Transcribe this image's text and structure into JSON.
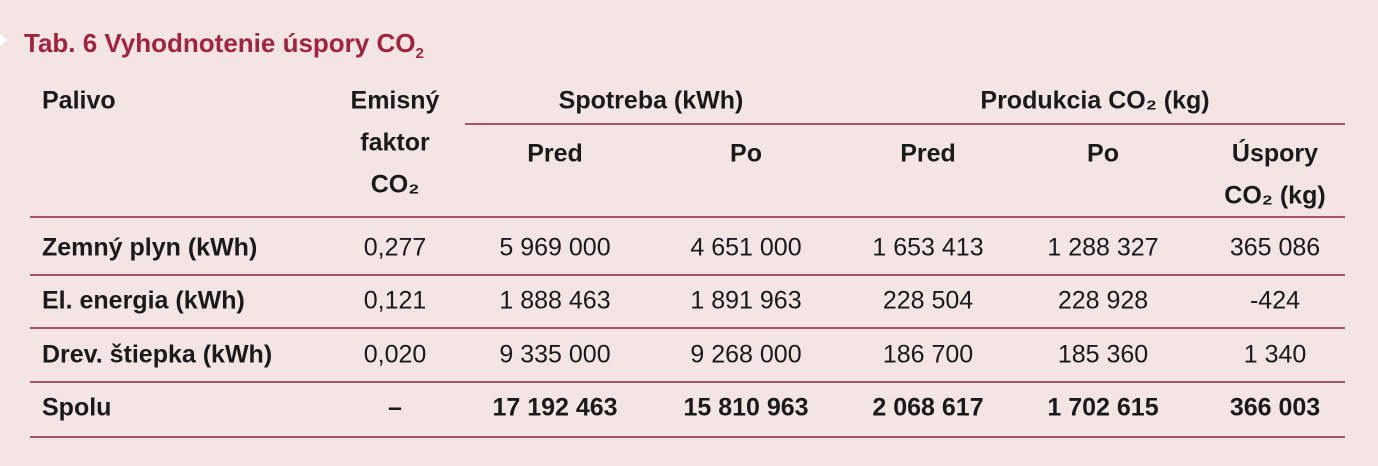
{
  "title": {
    "text": "Tab. 6 Vyhodnotenie úspory CO",
    "subscript": "2"
  },
  "table": {
    "header": {
      "fuel": "Palivo",
      "factor": [
        "Emisný",
        "faktor",
        "CO₂"
      ],
      "consumption": "Spotreba (kWh)",
      "production": "Produkcia CO₂ (kg)",
      "sub": [
        "Pred",
        "Po",
        "Pred",
        "Po"
      ],
      "savings": [
        "Úspory",
        "CO₂ (kg)"
      ]
    },
    "rows": [
      [
        "Zemný plyn (kWh)",
        "0,277",
        "5 969 000",
        "4 651 000",
        "1 653 413",
        "1 288 327",
        "365 086"
      ],
      [
        "El. energia (kWh)",
        "0,121",
        "1 888 463",
        "1 891 963",
        "228 504",
        "228 928",
        "-424"
      ],
      [
        "Drev. štiepka (kWh)",
        "0,020",
        "9 335 000",
        "9 268 000",
        "186 700",
        "185 360",
        "1 340"
      ]
    ],
    "total": [
      "Spolu",
      "–",
      "17 192 463",
      "15 810 963",
      "2 068 617",
      "1 702 615",
      "366 003"
    ]
  }
}
